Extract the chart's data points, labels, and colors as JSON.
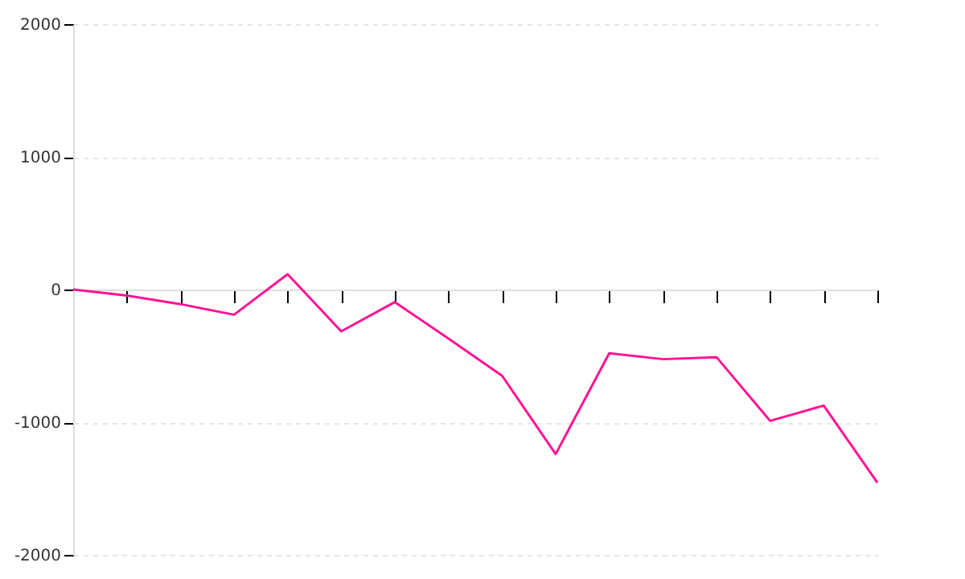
{
  "chart_data": {
    "type": "line",
    "categories": [
      null,
      null,
      null,
      null,
      null,
      null,
      null,
      null,
      null,
      null,
      null,
      null,
      null,
      null,
      null,
      null
    ],
    "series": [
      {
        "color": "#ff1493",
        "values": [
          0,
          -45,
          -110,
          -190,
          115,
          -315,
          -95,
          -370,
          -650,
          -1240,
          -480,
          -525,
          -510,
          -990,
          -875,
          -1455
        ]
      }
    ],
    "ylim": [
      -2000,
      2000
    ],
    "yticks": [
      -2000,
      -1000,
      0,
      1000,
      2000
    ],
    "grid": "y",
    "tick_labels": "y",
    "marker": "none",
    "line_style": "solid"
  }
}
